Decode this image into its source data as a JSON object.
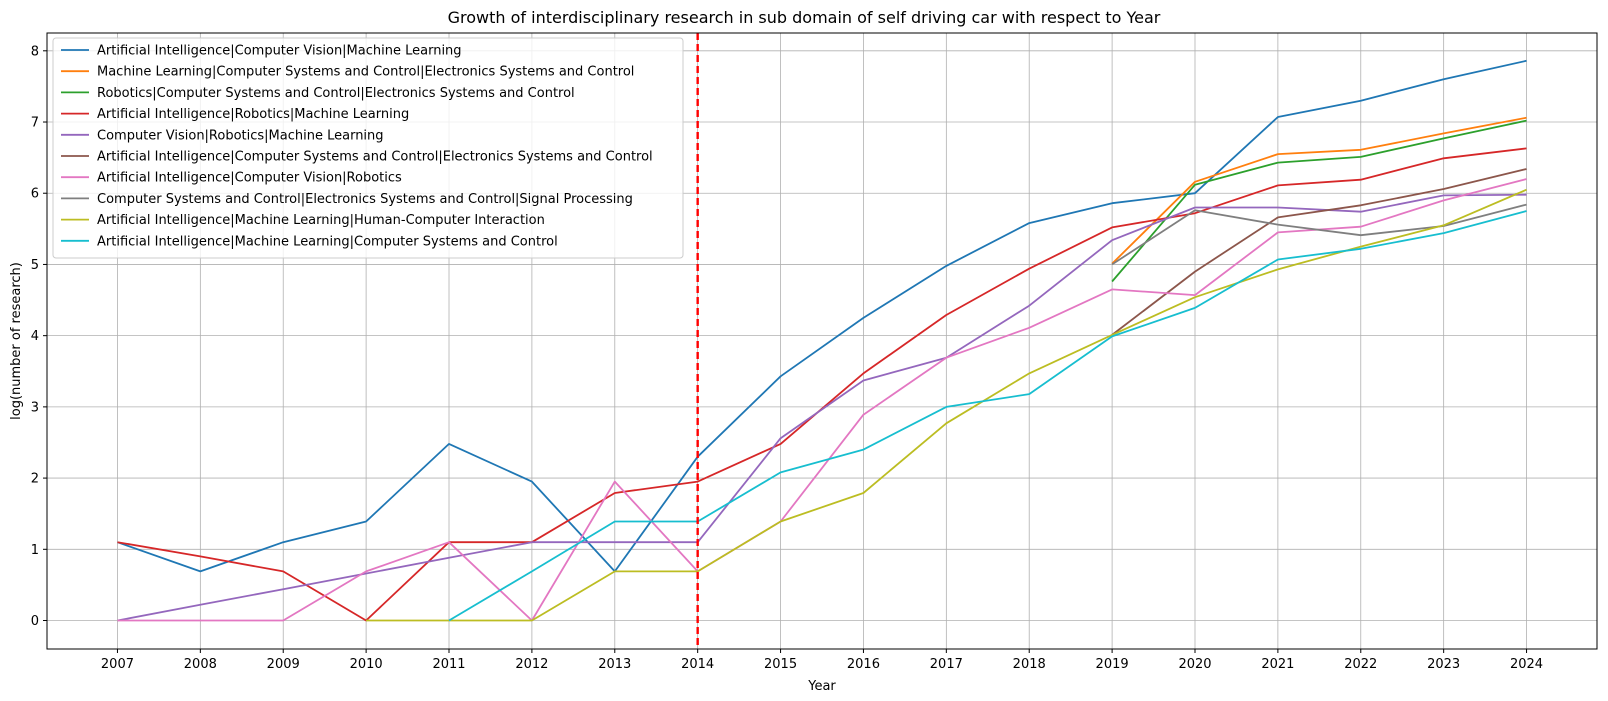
{
  "chart_data": {
    "type": "line",
    "title": "Growth of interdisciplinary research in sub domain of self driving car with respect to Year",
    "xlabel": "Year",
    "ylabel": "log(number of research)",
    "x": [
      2007,
      2008,
      2009,
      2010,
      2011,
      2012,
      2013,
      2014,
      2015,
      2016,
      2017,
      2018,
      2019,
      2020,
      2021,
      2022,
      2023,
      2024
    ],
    "xticks": [
      "2007",
      "2008",
      "2009",
      "2010",
      "2011",
      "2012",
      "2013",
      "2014",
      "2015",
      "2016",
      "2017",
      "2018",
      "2019",
      "2020",
      "2021",
      "2022",
      "2023",
      "2024"
    ],
    "yticks": [
      "0",
      "1",
      "2",
      "3",
      "4",
      "5",
      "6",
      "7",
      "8"
    ],
    "xlim": [
      2006.15,
      2024.85
    ],
    "ylim": [
      -0.4,
      8.25
    ],
    "grid": true,
    "legend_position": "top-left",
    "vline": {
      "x": 2014,
      "color": "#ff0000",
      "style": "dashed"
    },
    "series": [
      {
        "name": "Artificial Intelligence|Computer Vision|Machine Learning",
        "color": "#1f77b4",
        "values": [
          1.1,
          0.69,
          1.1,
          1.39,
          2.48,
          1.95,
          0.69,
          2.3,
          3.43,
          4.25,
          4.98,
          5.58,
          5.86,
          6.0,
          7.07,
          7.3,
          7.6,
          7.86
        ]
      },
      {
        "name": "Machine Learning|Computer Systems and Control|Electronics Systems and Control",
        "color": "#ff7f0e",
        "values": [
          null,
          null,
          null,
          null,
          null,
          null,
          null,
          null,
          null,
          null,
          null,
          null,
          5.01,
          6.16,
          6.55,
          6.61,
          6.84,
          7.06
        ]
      },
      {
        "name": "Robotics|Computer Systems and Control|Electronics Systems and Control",
        "color": "#2ca02c",
        "values": [
          null,
          null,
          null,
          null,
          null,
          null,
          null,
          null,
          null,
          null,
          null,
          null,
          4.76,
          6.12,
          6.43,
          6.51,
          6.77,
          7.02
        ]
      },
      {
        "name": "Artificial Intelligence|Robotics|Machine Learning",
        "color": "#d62728",
        "values": [
          1.1,
          0.9,
          0.69,
          0.0,
          1.1,
          1.1,
          1.79,
          1.95,
          2.48,
          3.47,
          4.29,
          4.94,
          5.52,
          5.72,
          6.11,
          6.19,
          6.49,
          6.63
        ]
      },
      {
        "name": "Computer Vision|Robotics|Machine Learning",
        "color": "#9467bd",
        "values": [
          0.0,
          0.22,
          0.44,
          0.66,
          0.88,
          1.1,
          1.1,
          1.1,
          2.56,
          3.37,
          3.69,
          4.42,
          5.34,
          5.8,
          5.8,
          5.74,
          5.97,
          5.98
        ]
      },
      {
        "name": "Artificial Intelligence|Computer Systems and Control|Electronics Systems and Control",
        "color": "#8c564b",
        "values": [
          null,
          null,
          null,
          null,
          null,
          null,
          null,
          null,
          null,
          null,
          null,
          null,
          4.01,
          4.9,
          5.66,
          5.83,
          6.06,
          6.34
        ]
      },
      {
        "name": "Artificial Intelligence|Computer Vision|Robotics",
        "color": "#e377c2",
        "values": [
          0.0,
          0.0,
          0.0,
          0.69,
          1.1,
          0.0,
          1.95,
          0.69,
          1.39,
          2.89,
          3.69,
          4.11,
          4.65,
          4.57,
          5.45,
          5.53,
          5.9,
          6.2
        ]
      },
      {
        "name": "Computer Systems and Control|Electronics Systems and Control|Signal Processing",
        "color": "#7f7f7f",
        "values": [
          null,
          null,
          null,
          null,
          null,
          null,
          null,
          null,
          null,
          null,
          null,
          null,
          5.0,
          5.76,
          5.56,
          5.41,
          5.54,
          5.84
        ]
      },
      {
        "name": "Artificial Intelligence|Machine Learning|Human-Computer Interaction",
        "color": "#bcbd22",
        "values": [
          null,
          null,
          null,
          0.0,
          0.0,
          0.0,
          0.69,
          0.69,
          1.39,
          1.79,
          2.77,
          3.47,
          4.01,
          4.54,
          4.93,
          5.25,
          5.55,
          6.05
        ]
      },
      {
        "name": "Artificial Intelligence|Machine Learning|Computer Systems and Control",
        "color": "#17becf",
        "values": [
          null,
          null,
          null,
          null,
          0.0,
          0.69,
          1.39,
          1.39,
          2.08,
          2.4,
          3.0,
          3.18,
          3.99,
          4.39,
          5.07,
          5.22,
          5.44,
          5.75
        ]
      }
    ]
  }
}
